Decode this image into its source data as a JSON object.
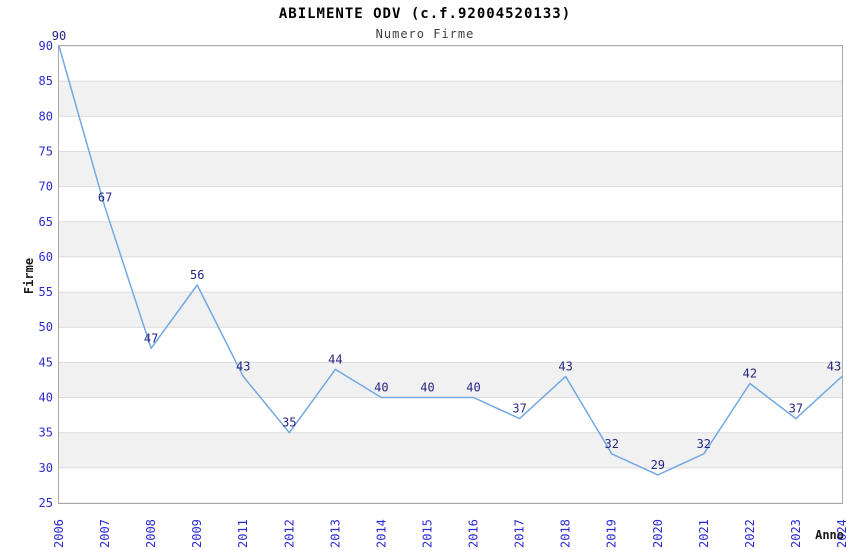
{
  "chart_data": {
    "type": "line",
    "title": "ABILMENTE ODV (c.f.92004520133)",
    "subtitle": "Numero Firme",
    "xlabel": "Anno",
    "ylabel": "Firme",
    "categories": [
      "2006",
      "2007",
      "2008",
      "2009",
      "2011",
      "2012",
      "2013",
      "2014",
      "2015",
      "2016",
      "2017",
      "2018",
      "2019",
      "2020",
      "2021",
      "2022",
      "2023",
      "2024"
    ],
    "values": [
      90,
      67,
      47,
      56,
      43,
      35,
      44,
      40,
      40,
      40,
      37,
      43,
      32,
      29,
      32,
      42,
      37,
      43
    ],
    "point_labels": [
      "90",
      "67",
      "47",
      "56",
      "43",
      "35",
      "44",
      "40",
      "40",
      "40",
      "37",
      "43",
      "32",
      "29",
      "32",
      "42",
      "37",
      "43"
    ],
    "ylim": [
      25,
      90
    ],
    "ytick_step": 5,
    "grid": true,
    "legend": false,
    "band_fill_between_gridlines": true,
    "colors": {
      "line": "#72a9e2",
      "tick_label": "#2b2bd2",
      "point_label": "#262682",
      "band": "#f1f1f1",
      "gridline": "#dcdcdc",
      "border": "#aaaaaa",
      "title": "#000000",
      "subtitle": "#404040",
      "axis_label": "#1a1a1a",
      "background": "#ffffff"
    }
  }
}
